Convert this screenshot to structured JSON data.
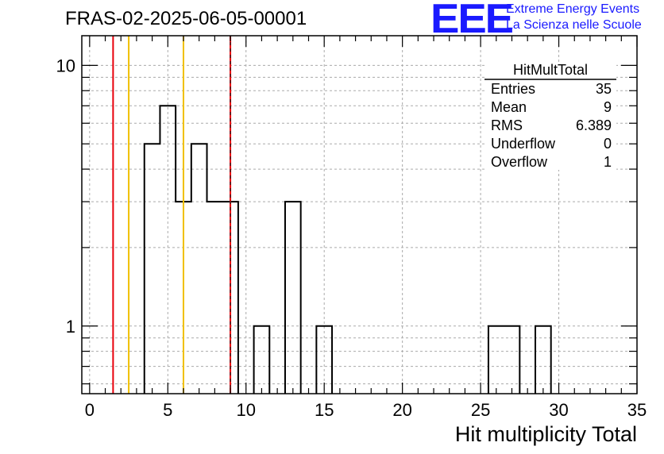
{
  "title": "FRAS-02-2025-06-05-00001",
  "logo": {
    "mark": "EEE",
    "line1": "Extreme Energy Events",
    "line2": "La Scienza nelle Scuole"
  },
  "colors": {
    "histogram": "#000000",
    "red_line": "#e8000b",
    "yellow_line": "#f0c000",
    "grid": "#aaaaaa",
    "logo": "#1a1aff"
  },
  "chart_data": {
    "type": "bar",
    "style": "step-histogram",
    "xlabel": "Hit multiplicity Total",
    "ylabel": "",
    "xlim": [
      -0.5,
      35.0
    ],
    "ylim_log": [
      0.55,
      13.0
    ],
    "log_y": true,
    "grid": true,
    "x_tick_labels": [
      "0",
      "5",
      "10",
      "15",
      "20",
      "25",
      "30",
      "35"
    ],
    "x_ticks": [
      0,
      5,
      10,
      15,
      20,
      25,
      30,
      35
    ],
    "y_tick_labels": [
      "1",
      "10"
    ],
    "y_ticks": [
      1,
      10
    ],
    "bin_width": 1,
    "bins": [
      {
        "x": 3.5,
        "value": 5
      },
      {
        "x": 4.5,
        "value": 7
      },
      {
        "x": 5.5,
        "value": 3
      },
      {
        "x": 6.5,
        "value": 5
      },
      {
        "x": 7.5,
        "value": 3
      },
      {
        "x": 8.5,
        "value": 3
      },
      {
        "x": 10.5,
        "value": 1
      },
      {
        "x": 12.5,
        "value": 3
      },
      {
        "x": 14.5,
        "value": 1
      },
      {
        "x": 25.5,
        "value": 1
      },
      {
        "x": 26.5,
        "value": 1
      },
      {
        "x": 28.5,
        "value": 1
      }
    ],
    "vertical_lines": [
      {
        "x": 1.5,
        "color": "red"
      },
      {
        "x": 2.5,
        "color": "yellow"
      },
      {
        "x": 6.0,
        "color": "yellow"
      },
      {
        "x": 9.0,
        "color": "red-dashed"
      }
    ],
    "stats_box": {
      "name": "HitMultTotal",
      "placement": "top-right",
      "rows": [
        {
          "label": "Entries",
          "value": "35"
        },
        {
          "label": "Mean",
          "value": "9"
        },
        {
          "label": "RMS",
          "value": "6.389"
        },
        {
          "label": "Underflow",
          "value": "0"
        },
        {
          "label": "Overflow",
          "value": "1"
        }
      ]
    }
  }
}
